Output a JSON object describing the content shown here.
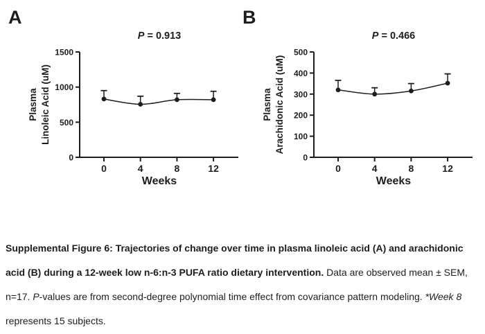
{
  "colors": {
    "ink": "#1d1d1b",
    "background": "#ffffff"
  },
  "chart_data": [
    {
      "type": "line",
      "panel_label": "A",
      "title": "P = 0.913",
      "title_italic_part": "P",
      "title_rest_part": " = 0.913",
      "x": [
        0,
        4,
        8,
        12
      ],
      "xlabel": "Weeks",
      "ylabel_lines": [
        "Plasma",
        "Linoleic Acid (uM)"
      ],
      "ylabel": "Plasma Linoleic Acid (uM)",
      "ylim": [
        0,
        1500
      ],
      "yticks": [
        0,
        500,
        1000,
        1500
      ],
      "grid": false,
      "legend": "none",
      "error_bar_style": "upper-only-with-cap",
      "marker": "filled-circle",
      "series": [
        {
          "name": "Plasma Linoleic Acid (uM)",
          "values": [
            830,
            755,
            820,
            820
          ],
          "sem_upper": [
            950,
            870,
            910,
            940
          ]
        }
      ]
    },
    {
      "type": "line",
      "panel_label": "B",
      "title": "P = 0.466",
      "title_italic_part": "P",
      "title_rest_part": " = 0.466",
      "x": [
        0,
        4,
        8,
        12
      ],
      "xlabel": "Weeks",
      "ylabel_lines": [
        "Plasma",
        "Arachidonic Acid (uM)"
      ],
      "ylabel": "Plasma Arachidonic Acid (uM)",
      "ylim": [
        0,
        500
      ],
      "yticks": [
        0,
        100,
        200,
        300,
        400,
        500
      ],
      "grid": false,
      "legend": "none",
      "error_bar_style": "upper-only-with-cap",
      "marker": "filled-circle",
      "series": [
        {
          "name": "Plasma Arachidonic Acid (uM)",
          "values": [
            320,
            300,
            315,
            352
          ],
          "sem_upper": [
            365,
            330,
            350,
            396
          ]
        }
      ]
    }
  ],
  "caption": {
    "segments": [
      {
        "style": "bold",
        "text": "Supplemental Figure 6: Trajectories of change over time in plasma linoleic acid (A) and arachidonic acid (B) during a 12-week low n-6:n-3 PUFA ratio dietary intervention."
      },
      {
        "style": "normal",
        "text": " Data are observed mean ± SEM, n=17. "
      },
      {
        "style": "italic",
        "text": "P"
      },
      {
        "style": "normal",
        "text": "-values are from second-degree polynomial time effect from covariance pattern modeling. "
      },
      {
        "style": "italic",
        "text": "*Week 8"
      },
      {
        "style": "normal",
        "text": " represents 15 subjects."
      }
    ]
  }
}
